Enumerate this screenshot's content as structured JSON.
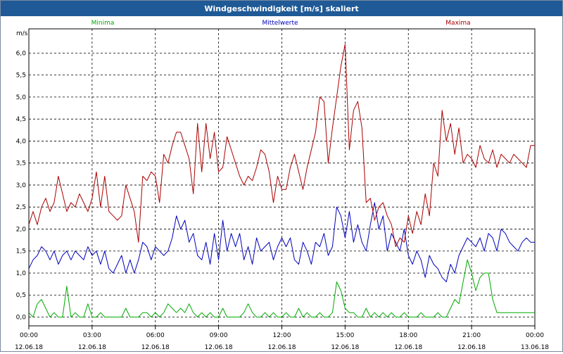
{
  "window": {
    "title": "Windgeschwindigkeit [m/s] skaliert"
  },
  "colors": {
    "titlebar": "#1f5a96",
    "min": "#00aa00",
    "mean": "#0000bb",
    "max": "#aa0000",
    "grid": "#000000"
  },
  "chart_data": {
    "type": "line",
    "title": "Windgeschwindigkeit [m/s] skaliert",
    "ylabel": "m/s",
    "ylim": [
      -0.2,
      6.55
    ],
    "yticks": [
      0.0,
      0.5,
      1.0,
      1.5,
      2.0,
      2.5,
      3.0,
      3.5,
      4.0,
      4.5,
      5.0,
      5.5,
      6.0
    ],
    "ytick_labels": [
      "0,0",
      "0,5",
      "1,0",
      "1,5",
      "2,0",
      "2,5",
      "3,0",
      "3,5",
      "4,0",
      "4,5",
      "5,0",
      "5,5",
      "6,0"
    ],
    "xlim": [
      0,
      24
    ],
    "xticks": [
      0,
      3,
      6,
      9,
      12,
      15,
      18,
      21,
      24
    ],
    "xtick_times": [
      "00:00",
      "03:00",
      "06:00",
      "09:00",
      "12:00",
      "15:00",
      "18:00",
      "21:00",
      "00:00"
    ],
    "xtick_dates": [
      "12.06.18",
      "12.06.18",
      "12.06.18",
      "12.06.18",
      "12.06.18",
      "12.06.18",
      "12.06.18",
      "12.06.18",
      "13.06.18"
    ],
    "grid": true,
    "legend": "top",
    "series": [
      {
        "name": "Minima",
        "color": "#00aa00",
        "x": [
          0.0,
          0.2,
          0.4,
          0.6,
          0.8,
          1.0,
          1.2,
          1.4,
          1.6,
          1.8,
          2.0,
          2.2,
          2.4,
          2.6,
          2.8,
          3.0,
          3.2,
          3.4,
          3.6,
          3.8,
          4.0,
          4.2,
          4.4,
          4.6,
          4.8,
          5.0,
          5.2,
          5.4,
          5.6,
          5.8,
          6.0,
          6.2,
          6.4,
          6.6,
          6.8,
          7.0,
          7.2,
          7.4,
          7.6,
          7.8,
          8.0,
          8.2,
          8.4,
          8.6,
          8.8,
          9.0,
          9.2,
          9.4,
          9.6,
          9.8,
          10.0,
          10.2,
          10.4,
          10.6,
          10.8,
          11.0,
          11.2,
          11.4,
          11.6,
          11.8,
          12.0,
          12.2,
          12.4,
          12.6,
          12.8,
          13.0,
          13.2,
          13.4,
          13.6,
          13.8,
          14.0,
          14.2,
          14.4,
          14.6,
          14.8,
          15.0,
          15.2,
          15.4,
          15.6,
          15.8,
          16.0,
          16.2,
          16.4,
          16.6,
          16.8,
          17.0,
          17.2,
          17.4,
          17.6,
          17.8,
          18.0,
          18.2,
          18.4,
          18.6,
          18.8,
          19.0,
          19.2,
          19.4,
          19.6,
          19.8,
          20.0,
          20.2,
          20.4,
          20.6,
          20.8,
          21.0,
          21.2,
          21.4,
          21.6,
          21.8,
          22.0,
          22.2,
          22.4,
          22.6,
          22.8,
          23.0,
          23.2,
          23.4,
          23.6,
          23.8,
          24.0
        ],
        "values": [
          0.1,
          0.0,
          0.3,
          0.4,
          0.2,
          0.0,
          0.1,
          0.0,
          0.0,
          0.7,
          0.0,
          0.1,
          0.0,
          0.0,
          0.3,
          0.0,
          0.0,
          0.1,
          0.0,
          0.0,
          0.0,
          0.0,
          0.0,
          0.2,
          0.0,
          0.0,
          0.0,
          0.1,
          0.1,
          0.0,
          0.1,
          0.0,
          0.1,
          0.3,
          0.2,
          0.1,
          0.2,
          0.1,
          0.3,
          0.1,
          0.0,
          0.1,
          0.0,
          0.1,
          0.0,
          0.0,
          0.2,
          0.0,
          0.0,
          0.0,
          0.0,
          0.1,
          0.3,
          0.1,
          0.0,
          0.0,
          0.1,
          0.0,
          0.1,
          0.0,
          0.0,
          0.1,
          0.0,
          0.0,
          0.2,
          0.0,
          0.1,
          0.0,
          0.0,
          0.1,
          0.0,
          0.0,
          0.1,
          0.8,
          0.6,
          0.2,
          0.1,
          0.1,
          0.0,
          0.0,
          0.2,
          0.0,
          0.1,
          0.0,
          0.1,
          0.0,
          0.1,
          0.0,
          0.0,
          0.1,
          0.0,
          0.0,
          0.0,
          0.1,
          0.0,
          0.0,
          0.0,
          0.1,
          0.0,
          0.0,
          0.2,
          0.4,
          0.3,
          0.8,
          1.3,
          1.0,
          0.6,
          0.9,
          1.0,
          1.0,
          0.4,
          0.1,
          0.1,
          0.1,
          0.1,
          0.1,
          0.1,
          0.1,
          0.1,
          0.1,
          0.1
        ]
      },
      {
        "name": "Mittelwerte",
        "color": "#0000bb",
        "x": [
          0.0,
          0.2,
          0.4,
          0.6,
          0.8,
          1.0,
          1.2,
          1.4,
          1.6,
          1.8,
          2.0,
          2.2,
          2.4,
          2.6,
          2.8,
          3.0,
          3.2,
          3.4,
          3.6,
          3.8,
          4.0,
          4.2,
          4.4,
          4.6,
          4.8,
          5.0,
          5.2,
          5.4,
          5.6,
          5.8,
          6.0,
          6.2,
          6.4,
          6.6,
          6.8,
          7.0,
          7.2,
          7.4,
          7.6,
          7.8,
          8.0,
          8.2,
          8.4,
          8.6,
          8.8,
          9.0,
          9.2,
          9.4,
          9.6,
          9.8,
          10.0,
          10.2,
          10.4,
          10.6,
          10.8,
          11.0,
          11.2,
          11.4,
          11.6,
          11.8,
          12.0,
          12.2,
          12.4,
          12.6,
          12.8,
          13.0,
          13.2,
          13.4,
          13.6,
          13.8,
          14.0,
          14.2,
          14.4,
          14.6,
          14.8,
          15.0,
          15.2,
          15.4,
          15.6,
          15.8,
          16.0,
          16.2,
          16.4,
          16.6,
          16.8,
          17.0,
          17.2,
          17.4,
          17.6,
          17.8,
          18.0,
          18.2,
          18.4,
          18.6,
          18.8,
          19.0,
          19.2,
          19.4,
          19.6,
          19.8,
          20.0,
          20.2,
          20.4,
          20.6,
          20.8,
          21.0,
          21.2,
          21.4,
          21.6,
          21.8,
          22.0,
          22.2,
          22.4,
          22.6,
          22.8,
          23.0,
          23.2,
          23.4,
          23.6,
          23.8,
          24.0
        ],
        "values": [
          1.1,
          1.3,
          1.4,
          1.6,
          1.5,
          1.3,
          1.5,
          1.2,
          1.4,
          1.5,
          1.3,
          1.5,
          1.4,
          1.3,
          1.6,
          1.4,
          1.5,
          1.2,
          1.5,
          1.1,
          1.0,
          1.2,
          1.4,
          1.0,
          1.3,
          1.0,
          1.3,
          1.7,
          1.6,
          1.3,
          1.6,
          1.5,
          1.4,
          1.5,
          1.8,
          2.3,
          2.0,
          2.2,
          1.7,
          1.9,
          1.4,
          1.3,
          1.7,
          1.2,
          1.9,
          1.3,
          2.2,
          1.5,
          1.9,
          1.6,
          1.9,
          1.3,
          1.6,
          1.2,
          1.8,
          1.5,
          1.6,
          1.7,
          1.3,
          1.6,
          1.8,
          1.6,
          1.8,
          1.3,
          1.2,
          1.7,
          1.5,
          1.2,
          1.7,
          1.6,
          1.9,
          1.4,
          1.6,
          2.5,
          2.3,
          1.8,
          2.4,
          1.7,
          2.1,
          1.7,
          1.5,
          2.1,
          2.6,
          2.0,
          2.3,
          1.5,
          1.9,
          1.7,
          1.5,
          2.0,
          1.4,
          1.2,
          1.5,
          1.3,
          0.9,
          1.4,
          1.2,
          1.1,
          0.9,
          0.8,
          1.2,
          1.0,
          1.4,
          1.6,
          1.8,
          1.7,
          1.6,
          1.8,
          1.5,
          1.9,
          1.8,
          1.5,
          2.0,
          1.9,
          1.7,
          1.6,
          1.5,
          1.7,
          1.8,
          1.7,
          1.7
        ]
      },
      {
        "name": "Maxima",
        "color": "#aa0000",
        "x": [
          0.0,
          0.2,
          0.4,
          0.6,
          0.8,
          1.0,
          1.2,
          1.4,
          1.6,
          1.8,
          2.0,
          2.2,
          2.4,
          2.6,
          2.8,
          3.0,
          3.2,
          3.4,
          3.6,
          3.8,
          4.0,
          4.2,
          4.4,
          4.6,
          4.8,
          5.0,
          5.2,
          5.4,
          5.6,
          5.8,
          6.0,
          6.2,
          6.4,
          6.6,
          6.8,
          7.0,
          7.2,
          7.4,
          7.6,
          7.8,
          8.0,
          8.2,
          8.4,
          8.6,
          8.8,
          9.0,
          9.2,
          9.4,
          9.6,
          9.8,
          10.0,
          10.2,
          10.4,
          10.6,
          10.8,
          11.0,
          11.2,
          11.4,
          11.6,
          11.8,
          12.0,
          12.2,
          12.4,
          12.6,
          12.8,
          13.0,
          13.2,
          13.4,
          13.6,
          13.8,
          14.0,
          14.2,
          14.4,
          14.6,
          14.8,
          15.0,
          15.2,
          15.4,
          15.6,
          15.8,
          16.0,
          16.2,
          16.4,
          16.6,
          16.8,
          17.0,
          17.2,
          17.4,
          17.6,
          17.8,
          18.0,
          18.2,
          18.4,
          18.6,
          18.8,
          19.0,
          19.2,
          19.4,
          19.6,
          19.8,
          20.0,
          20.2,
          20.4,
          20.6,
          20.8,
          21.0,
          21.2,
          21.4,
          21.6,
          21.8,
          22.0,
          22.2,
          22.4,
          22.6,
          22.8,
          23.0,
          23.2,
          23.4,
          23.6,
          23.8,
          24.0
        ],
        "values": [
          2.1,
          2.4,
          2.1,
          2.5,
          2.7,
          2.4,
          2.6,
          3.2,
          2.8,
          2.4,
          2.6,
          2.5,
          2.8,
          2.6,
          2.4,
          2.7,
          3.3,
          2.5,
          3.2,
          2.4,
          2.3,
          2.2,
          2.3,
          3.0,
          2.7,
          2.4,
          1.7,
          3.2,
          3.1,
          3.3,
          3.2,
          2.6,
          3.7,
          3.5,
          3.9,
          4.2,
          4.2,
          3.9,
          3.6,
          2.8,
          4.4,
          3.3,
          4.4,
          3.6,
          4.2,
          3.3,
          3.4,
          4.1,
          3.8,
          3.5,
          3.2,
          3.0,
          3.2,
          3.1,
          3.4,
          3.8,
          3.7,
          3.3,
          2.6,
          3.2,
          2.9,
          2.9,
          3.4,
          3.7,
          3.3,
          2.9,
          3.4,
          3.8,
          4.2,
          5.0,
          4.9,
          3.5,
          4.3,
          5.0,
          5.7,
          6.2,
          3.8,
          4.7,
          4.9,
          4.3,
          2.6,
          2.7,
          2.2,
          2.5,
          2.6,
          2.3,
          2.1,
          1.6,
          1.8,
          1.7,
          2.3,
          1.9,
          2.4,
          2.1,
          2.8,
          2.3,
          3.5,
          3.2,
          4.7,
          4.0,
          4.4,
          3.7,
          4.3,
          3.5,
          3.7,
          3.6,
          3.4,
          3.9,
          3.6,
          3.5,
          3.8,
          3.4,
          3.7,
          3.6,
          3.5,
          3.7,
          3.6,
          3.5,
          3.4,
          3.9,
          3.9
        ]
      }
    ]
  }
}
